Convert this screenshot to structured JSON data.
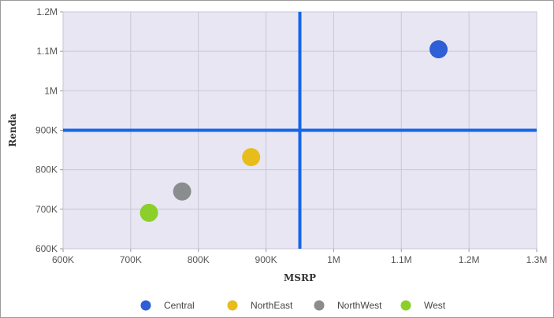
{
  "chart_data": {
    "type": "scatter",
    "xlabel": "MSRP",
    "ylabel": "Renda",
    "xlim": [
      600000,
      1300000
    ],
    "ylim": [
      600000,
      1200000
    ],
    "x_ticks": [
      {
        "value": 600000,
        "label": "600K"
      },
      {
        "value": 700000,
        "label": "700K"
      },
      {
        "value": 800000,
        "label": "800K"
      },
      {
        "value": 900000,
        "label": "900K"
      },
      {
        "value": 1000000,
        "label": "1M"
      },
      {
        "value": 1100000,
        "label": "1.1M"
      },
      {
        "value": 1200000,
        "label": "1.2M"
      },
      {
        "value": 1300000,
        "label": "1.3M"
      }
    ],
    "y_ticks": [
      {
        "value": 600000,
        "label": "600K"
      },
      {
        "value": 700000,
        "label": "700K"
      },
      {
        "value": 800000,
        "label": "800K"
      },
      {
        "value": 900000,
        "label": "900K"
      },
      {
        "value": 1000000,
        "label": "1M"
      },
      {
        "value": 1100000,
        "label": "1.1M"
      },
      {
        "value": 1200000,
        "label": "1.2M"
      }
    ],
    "reference_lines": {
      "x": 950000,
      "y": 900000,
      "color": "#1565e6"
    },
    "grid": true,
    "legend_position": "bottom",
    "plot_background": "#e9e6f3",
    "series": [
      {
        "name": "Central",
        "color": "#2f5fd6",
        "x": 1155000,
        "y": 1105000
      },
      {
        "name": "NorthEast",
        "color": "#e8bd1a",
        "x": 878000,
        "y": 832000
      },
      {
        "name": "NorthWest",
        "color": "#8a8c8e",
        "x": 776000,
        "y": 745000
      },
      {
        "name": "West",
        "color": "#8bcf2a",
        "x": 727000,
        "y": 691000
      }
    ]
  }
}
